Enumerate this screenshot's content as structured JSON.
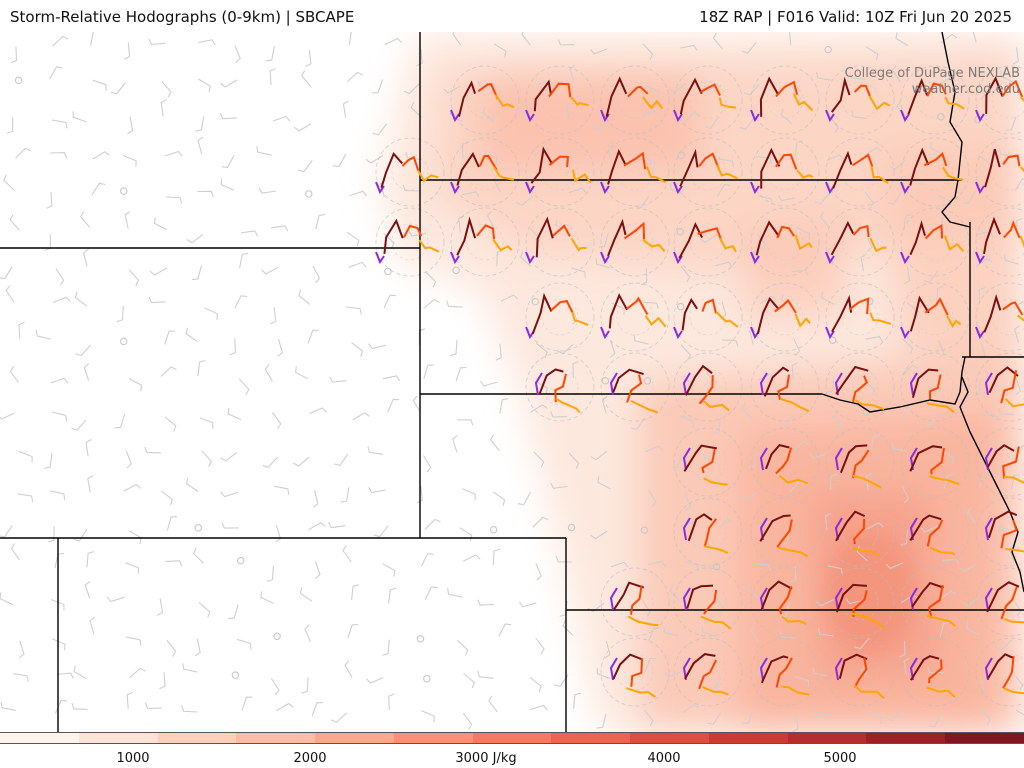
{
  "header": {
    "title_left": "Storm-Relative Hodographs (0-9km) | SBCAPE",
    "title_right": "18Z RAP | F016 Valid: 10Z Fri Jun 20 2025"
  },
  "credit": {
    "line1": "College of DuPage NEXLAB",
    "line2": "weather.cod.edu"
  },
  "colorbar": {
    "unit": "J/kg",
    "ticks": [
      {
        "value": 1000,
        "label": "1000"
      },
      {
        "value": 2000,
        "label": "2000"
      },
      {
        "value": 3000,
        "label": "3000 J/kg"
      },
      {
        "value": 4000,
        "label": "4000"
      },
      {
        "value": 5000,
        "label": "5000"
      }
    ],
    "colors": [
      "#fff3ec",
      "#fee3d6",
      "#fdd0bb",
      "#fcbda4",
      "#fba88d",
      "#f89275",
      "#f27c62",
      "#e8654f",
      "#d95040",
      "#c73d34",
      "#b1302d",
      "#982327",
      "#7c1a22"
    ]
  },
  "hodograph_colors": {
    "layer_0_3km": "#7a1010",
    "layer_3_6km": "#ff4500",
    "layer_6_9km": "#ffa500",
    "storm_motion": "#8a2be2"
  }
}
